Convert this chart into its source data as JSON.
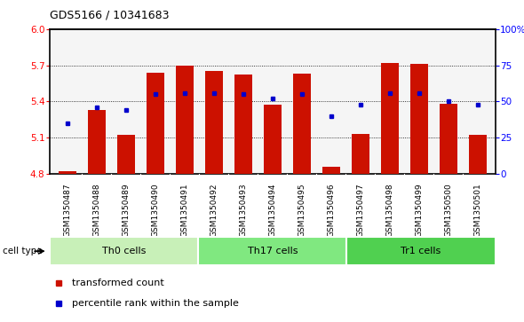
{
  "title": "GDS5166 / 10341683",
  "samples": [
    "GSM1350487",
    "GSM1350488",
    "GSM1350489",
    "GSM1350490",
    "GSM1350491",
    "GSM1350492",
    "GSM1350493",
    "GSM1350494",
    "GSM1350495",
    "GSM1350496",
    "GSM1350497",
    "GSM1350498",
    "GSM1350499",
    "GSM1350500",
    "GSM1350501"
  ],
  "transformed_count": [
    4.82,
    5.33,
    5.12,
    5.64,
    5.7,
    5.65,
    5.62,
    5.37,
    5.63,
    4.86,
    5.13,
    5.72,
    5.71,
    5.38,
    5.12
  ],
  "percentile_rank": [
    35,
    46,
    44,
    55,
    56,
    56,
    55,
    52,
    55,
    40,
    48,
    56,
    56,
    50,
    48
  ],
  "cell_groups": [
    {
      "label": "Th0 cells",
      "start": 0,
      "end": 5,
      "color": "#c8f0b8"
    },
    {
      "label": "Th17 cells",
      "start": 5,
      "end": 10,
      "color": "#80e880"
    },
    {
      "label": "Tr1 cells",
      "start": 10,
      "end": 15,
      "color": "#50d050"
    }
  ],
  "bar_color": "#cc1100",
  "dot_color": "#0000cc",
  "baseline": 4.8,
  "ylim_left": [
    4.8,
    6.0
  ],
  "yticks_left": [
    4.8,
    5.1,
    5.4,
    5.7,
    6.0
  ],
  "ylim_right": [
    0,
    100
  ],
  "yticks_right": [
    0,
    25,
    50,
    75,
    100
  ],
  "yticklabels_right": [
    "0",
    "25",
    "50",
    "75",
    "100%"
  ],
  "grid_values": [
    5.1,
    5.4,
    5.7
  ],
  "bg_color": "#e8e8e8",
  "plot_bg": "#f5f5f5",
  "cell_type_label": "cell type"
}
